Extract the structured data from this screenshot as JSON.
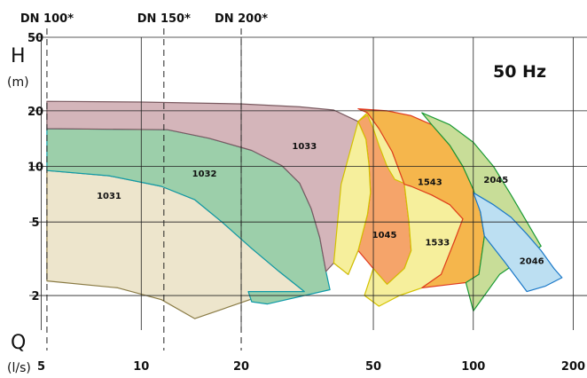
{
  "chart_data": {
    "type": "area",
    "title": "",
    "annotation": "50 Hz",
    "x_axis": {
      "symbol": "Q",
      "unit": "(l/s)",
      "scale": "log",
      "range": [
        4.6,
        220
      ],
      "ticks": [
        5,
        10,
        20,
        50,
        100,
        200
      ],
      "tick_labels": [
        "5",
        "10",
        "20",
        "50",
        "100",
        "200"
      ]
    },
    "y_axis": {
      "symbol": "H",
      "unit": "(m)",
      "scale": "log",
      "range": [
        1.3,
        50
      ],
      "ticks": [
        2,
        5,
        10,
        20,
        50
      ],
      "tick_labels": [
        "2",
        "5",
        "10",
        "20",
        "50"
      ]
    },
    "grid": true,
    "pipe_limits": [
      {
        "label": "DN 100*",
        "q": 5.2
      },
      {
        "label": "DN 150*",
        "q": 11.7
      },
      {
        "label": "DN 200*",
        "q": 20.0
      }
    ],
    "regions": [
      {
        "name": "1031",
        "color": "#ede5cc",
        "stroke": "#8a7b45",
        "points": [
          [
            5.2,
            9.5
          ],
          [
            8,
            8.9
          ],
          [
            11.5,
            7.8
          ],
          [
            14.5,
            6.6
          ],
          [
            17.5,
            5.0
          ],
          [
            21.5,
            3.6
          ],
          [
            26,
            2.7
          ],
          [
            31,
            2.1
          ],
          [
            25,
            2.1
          ],
          [
            14.5,
            1.5
          ],
          [
            11.5,
            1.9
          ],
          [
            8.5,
            2.2
          ],
          [
            5.2,
            2.4
          ]
        ],
        "label_at": [
          8.0,
          7.0
        ]
      },
      {
        "name": "1032",
        "color": "#9ccfaa",
        "stroke": "#0e9aa8",
        "points": [
          [
            5.2,
            16
          ],
          [
            12,
            15.8
          ],
          [
            16,
            14.2
          ],
          [
            21.5,
            12.2
          ],
          [
            26.5,
            10.1
          ],
          [
            30,
            8.1
          ],
          [
            32.5,
            5.9
          ],
          [
            34.5,
            4.1
          ],
          [
            36,
            2.7
          ],
          [
            37,
            2.15
          ],
          [
            24,
            1.8
          ],
          [
            21.5,
            1.85
          ],
          [
            21,
            2.1
          ],
          [
            31,
            2.1
          ],
          [
            26,
            2.7
          ],
          [
            21.5,
            3.6
          ],
          [
            17.5,
            5.0
          ],
          [
            14.5,
            6.6
          ],
          [
            11.5,
            7.8
          ],
          [
            8,
            8.9
          ],
          [
            5.2,
            9.5
          ]
        ],
        "label_at": [
          15.5,
          9.2
        ]
      },
      {
        "name": "1033",
        "color": "#d4b5ba",
        "stroke": "#7a5a60",
        "points": [
          [
            5.2,
            22.5
          ],
          [
            10,
            22.3
          ],
          [
            20,
            21.8
          ],
          [
            30,
            21
          ],
          [
            38,
            20.2
          ],
          [
            45,
            17.5
          ],
          [
            47.5,
            14
          ],
          [
            48.5,
            10.2
          ],
          [
            49,
            7.2
          ],
          [
            48,
            5.5
          ],
          [
            45,
            3.5
          ],
          [
            42,
            2.6
          ],
          [
            38,
            3.0
          ],
          [
            36,
            2.7
          ],
          [
            34.5,
            4.1
          ],
          [
            32.5,
            5.9
          ],
          [
            30,
            8.1
          ],
          [
            26.5,
            10.1
          ],
          [
            21.5,
            12.2
          ],
          [
            16,
            14.2
          ],
          [
            12,
            15.8
          ],
          [
            5.2,
            16
          ]
        ],
        "label_at": [
          31,
          13
        ]
      },
      {
        "name": "1045",
        "color": "#f5a46a",
        "stroke": "#e03b20",
        "points": [
          [
            45,
            17.5
          ],
          [
            47.5,
            14
          ],
          [
            48.5,
            10.2
          ],
          [
            49,
            7.2
          ],
          [
            48,
            5.5
          ],
          [
            45,
            3.5
          ],
          [
            50,
            2.8
          ],
          [
            55,
            2.3
          ],
          [
            62,
            2.8
          ],
          [
            65,
            3.5
          ],
          [
            64,
            5
          ],
          [
            62,
            8
          ],
          [
            57,
            12
          ],
          [
            52,
            16
          ],
          [
            48,
            19.5
          ]
        ],
        "label_at": [
          54,
          4.3
        ]
      },
      {
        "name": "1533",
        "color": "#f6ef9c",
        "stroke": "#d4c200",
        "points": [
          [
            38,
            3.0
          ],
          [
            42,
            2.6
          ],
          [
            45,
            3.5
          ],
          [
            48,
            5.5
          ],
          [
            49,
            7.2
          ],
          [
            48.5,
            10.2
          ],
          [
            47.5,
            14
          ],
          [
            45,
            17.5
          ],
          [
            48,
            19.5
          ],
          [
            52,
            16
          ],
          [
            57,
            12
          ],
          [
            62,
            8
          ],
          [
            64,
            5
          ],
          [
            65,
            3.5
          ],
          [
            62,
            2.8
          ],
          [
            55,
            2.3
          ],
          [
            50,
            2.8
          ],
          [
            47,
            2.0
          ],
          [
            52,
            1.75
          ],
          [
            60,
            2.0
          ],
          [
            70,
            2.2
          ],
          [
            80,
            2.6
          ],
          [
            88,
            4.0
          ],
          [
            93,
            5.2
          ],
          [
            85,
            6.2
          ],
          [
            75,
            7.0
          ],
          [
            65,
            7.8
          ],
          [
            58,
            8.5
          ],
          [
            55,
            10
          ],
          [
            52,
            13
          ],
          [
            50,
            16
          ],
          [
            48,
            19
          ],
          [
            45,
            17.5
          ],
          [
            40,
            8
          ],
          [
            38,
            3.0
          ]
        ],
        "label_at": [
          78,
          3.9
        ]
      },
      {
        "name": "1543",
        "color": "#f5b64c",
        "stroke": "#e03b20",
        "points": [
          [
            45,
            20.5
          ],
          [
            55,
            20.0
          ],
          [
            65,
            18.8
          ],
          [
            75,
            16.8
          ],
          [
            85,
            13.0
          ],
          [
            93,
            10.0
          ],
          [
            100,
            7.5
          ],
          [
            105,
            5.7
          ],
          [
            108,
            4.2
          ],
          [
            104,
            2.6
          ],
          [
            95,
            2.35
          ],
          [
            70,
            2.2
          ],
          [
            80,
            2.6
          ],
          [
            88,
            4.0
          ],
          [
            93,
            5.2
          ],
          [
            85,
            6.2
          ],
          [
            75,
            7.0
          ],
          [
            65,
            7.8
          ],
          [
            62,
            8
          ],
          [
            57,
            12
          ],
          [
            52,
            16
          ],
          [
            48,
            19.5
          ]
        ],
        "label_at": [
          74,
          8.3
        ]
      },
      {
        "name": "2045",
        "color": "#c8dd98",
        "stroke": "#1a9a35",
        "points": [
          [
            70,
            19.5
          ],
          [
            85,
            16.8
          ],
          [
            100,
            13.5
          ],
          [
            115,
            10.0
          ],
          [
            130,
            7.0
          ],
          [
            145,
            5.0
          ],
          [
            160,
            3.7
          ],
          [
            120,
            2.6
          ],
          [
            100,
            1.65
          ],
          [
            95,
            2.35
          ],
          [
            104,
            2.6
          ],
          [
            108,
            4.2
          ],
          [
            105,
            5.7
          ],
          [
            100,
            7.5
          ],
          [
            93,
            10.0
          ],
          [
            85,
            13.0
          ],
          [
            75,
            16.8
          ]
        ],
        "label_at": [
          117,
          8.5
        ]
      },
      {
        "name": "2046",
        "color": "#bcdff2",
        "stroke": "#1a78c8",
        "points": [
          [
            100,
            7.2
          ],
          [
            115,
            6.2
          ],
          [
            130,
            5.3
          ],
          [
            145,
            4.3
          ],
          [
            160,
            3.5
          ],
          [
            175,
            2.8
          ],
          [
            185,
            2.5
          ],
          [
            165,
            2.25
          ],
          [
            145,
            2.1
          ],
          [
            125,
            3.0
          ],
          [
            108,
            4.2
          ],
          [
            105,
            5.7
          ]
        ],
        "label_at": [
          150,
          3.1
        ]
      }
    ]
  }
}
